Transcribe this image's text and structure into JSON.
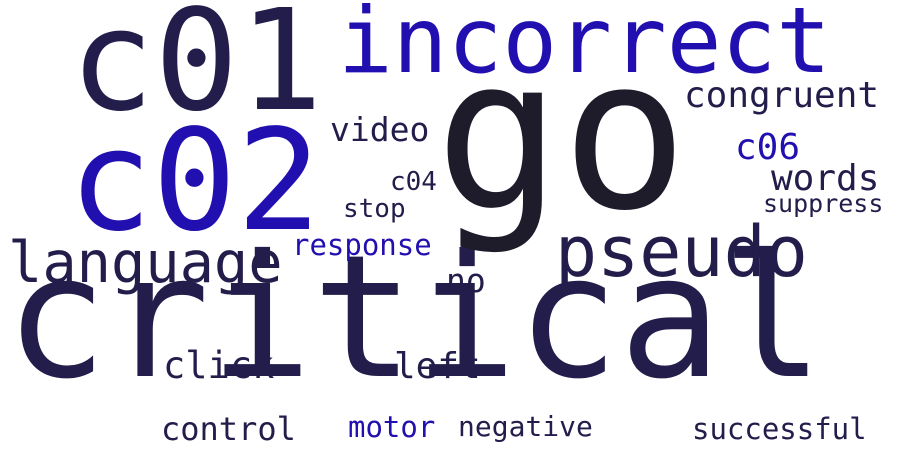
{
  "words": {
    "critical": "critical",
    "go": "go",
    "c01": "c01",
    "c02": "c02",
    "incorrect": "incorrect",
    "pseudo": "pseudo",
    "language": "language",
    "congruent": "congruent",
    "video": "video",
    "c06": "c06",
    "words": "words",
    "c04": "c04",
    "stop": "stop",
    "suppress": "suppress",
    "response": "response",
    "no": "no",
    "click": "click",
    "left": "left",
    "control": "control",
    "motor": "motor",
    "negative": "negative",
    "successful": "successful"
  },
  "colors": {
    "dark": "#221d4a",
    "blue": "#220fb0",
    "black": "#1e1c2b",
    "navy": "#261c6a",
    "background": "#ffffff"
  }
}
